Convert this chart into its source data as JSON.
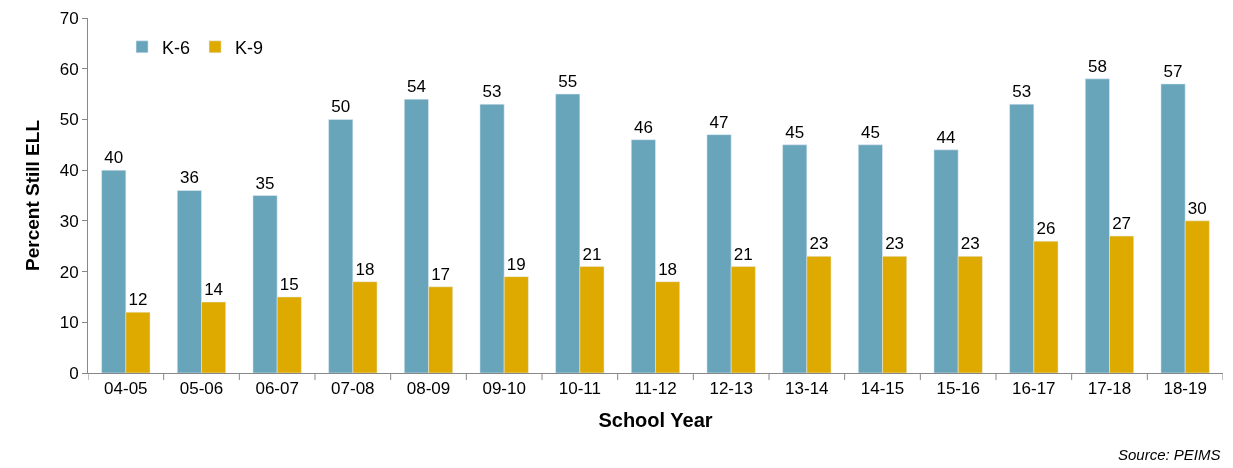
{
  "chart_data": {
    "type": "bar",
    "xlabel": "School Year",
    "ylabel": "Percent Still ELL",
    "categories": [
      "04-05",
      "05-06",
      "06-07",
      "07-08",
      "08-09",
      "09-10",
      "10-11",
      "11-12",
      "12-13",
      "13-14",
      "14-15",
      "15-16",
      "16-17",
      "17-18",
      "18-19"
    ],
    "series": [
      {
        "name": "K-6",
        "color": "#68a5bb",
        "values": [
          40,
          36,
          35,
          50,
          54,
          53,
          55,
          46,
          47,
          45,
          45,
          44,
          53,
          58,
          57
        ]
      },
      {
        "name": "K-9",
        "color": "#deaa00",
        "values": [
          12,
          14,
          15,
          18,
          17,
          19,
          21,
          18,
          21,
          23,
          23,
          23,
          26,
          27,
          30
        ]
      }
    ],
    "ylim": [
      0,
      70
    ],
    "yticks": [
      0,
      10,
      20,
      30,
      40,
      50,
      60,
      70
    ],
    "legend": "top left",
    "data_labels": true,
    "annotations": [
      "Source: PEIMS"
    ]
  }
}
